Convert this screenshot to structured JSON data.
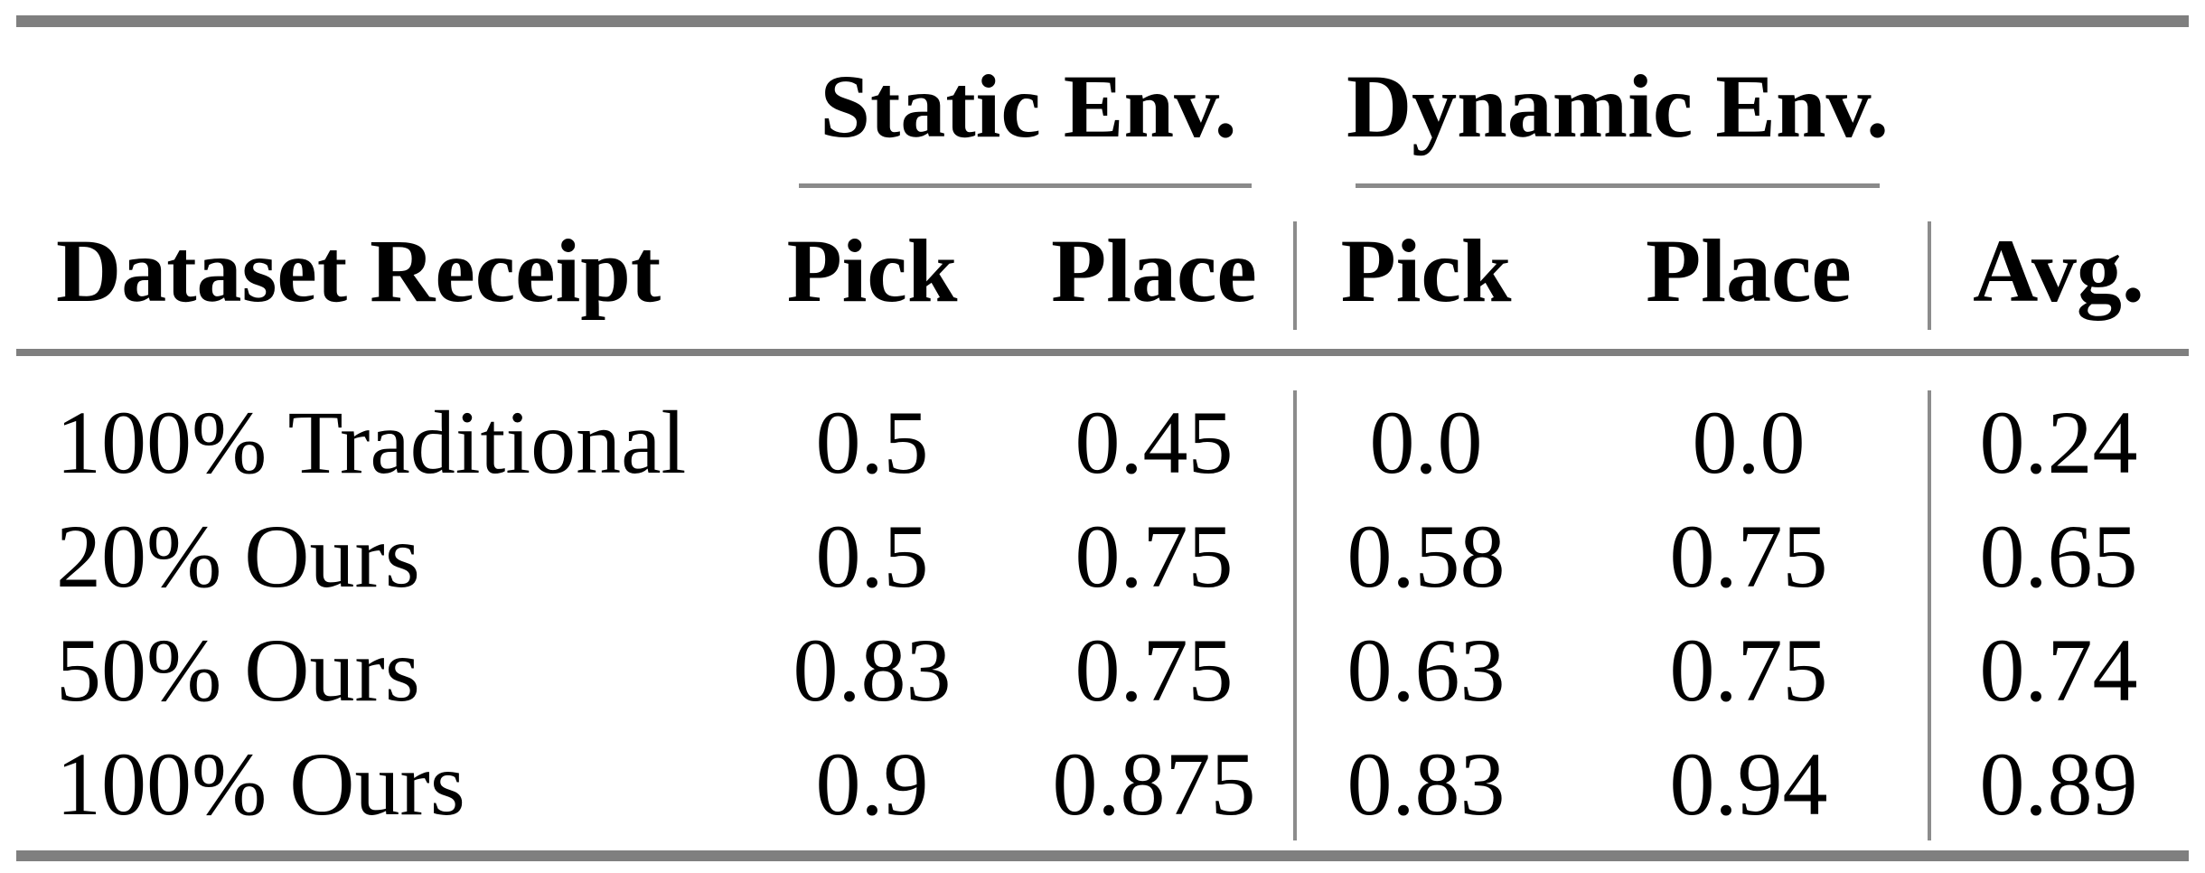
{
  "table": {
    "groups": [
      {
        "label": "Static Env."
      },
      {
        "label": "Dynamic Env."
      }
    ],
    "header": {
      "row_label": "Dataset Receipt",
      "columns": [
        "Pick",
        "Place",
        "Pick",
        "Place",
        "Avg."
      ]
    },
    "rows": [
      {
        "label": "100% Traditional",
        "values": [
          "0.5",
          "0.45",
          "0.0",
          "0.0",
          "0.24"
        ]
      },
      {
        "label": "20% Ours",
        "values": [
          "0.5",
          "0.75",
          "0.58",
          "0.75",
          "0.65"
        ]
      },
      {
        "label": "50% Ours",
        "values": [
          "0.83",
          "0.75",
          "0.63",
          "0.75",
          "0.74"
        ]
      },
      {
        "label": "100% Ours",
        "values": [
          "0.9",
          "0.875",
          "0.83",
          "0.94",
          "0.89"
        ]
      }
    ],
    "rule_color": "#7f7f7f",
    "text_color": "#000000"
  },
  "chart_data": {
    "type": "table",
    "column_groups": [
      "Static Env.",
      "Dynamic Env."
    ],
    "columns": [
      "Dataset Receipt",
      "Static Env. Pick",
      "Static Env. Place",
      "Dynamic Env. Pick",
      "Dynamic Env. Place",
      "Avg."
    ],
    "rows": [
      [
        "100% Traditional",
        0.5,
        0.45,
        0.0,
        0.0,
        0.24
      ],
      [
        "20% Ours",
        0.5,
        0.75,
        0.58,
        0.75,
        0.65
      ],
      [
        "50% Ours",
        0.83,
        0.75,
        0.63,
        0.75,
        0.74
      ],
      [
        "100% Ours",
        0.9,
        0.875,
        0.83,
        0.94,
        0.89
      ]
    ]
  }
}
